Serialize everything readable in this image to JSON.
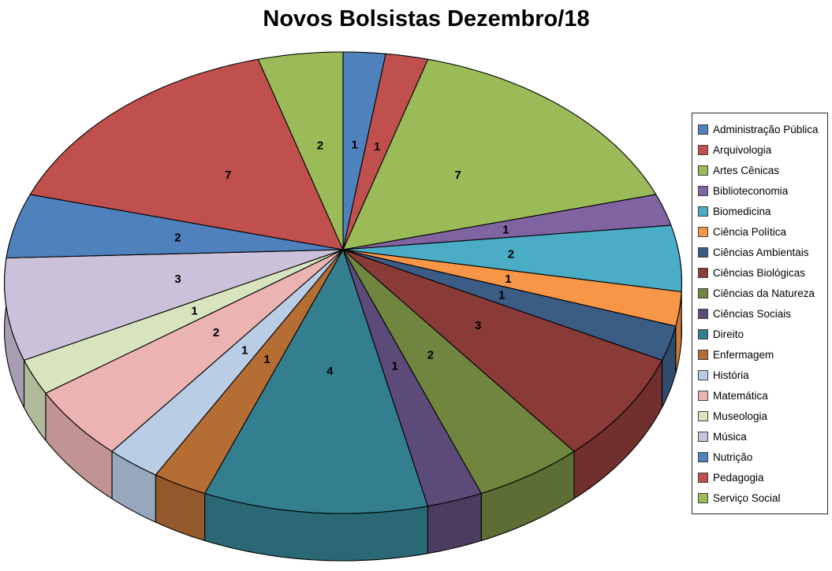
{
  "chart_data": {
    "type": "pie",
    "style": "3d",
    "title": "Novos Bolsistas Dezembro/18",
    "legend_position": "right",
    "data_labels": "value",
    "categories": [
      "Administração Pública",
      "Arquivologia",
      "Artes Cênicas",
      "Biblioteconomia",
      "Biomedicina",
      "Ciência Política",
      "Ciências Ambientais",
      "Ciências Biológicas",
      "Ciências da Natureza",
      "Ciências Sociais",
      "Direito",
      "Enfermagem",
      "História",
      "Matemática",
      "Museologia",
      "Música",
      "Nutrição",
      "Pedagogia",
      "Serviço Social"
    ],
    "values": [
      1,
      1,
      7,
      1,
      2,
      1,
      1,
      3,
      2,
      1,
      4,
      1,
      1,
      2,
      1,
      3,
      2,
      7,
      2
    ],
    "colors": [
      "#4F81BD",
      "#C0504D",
      "#9BBB59",
      "#8064A2",
      "#4BACC6",
      "#F79646",
      "#3B5C85",
      "#8A3B38",
      "#70863F",
      "#5C4B78",
      "#337F8F",
      "#B56D33",
      "#B9CDE5",
      "#EBB3B2",
      "#D7E4BD",
      "#CCC1DA",
      "#4F81BD",
      "#C0504D",
      "#9BBB59"
    ]
  }
}
